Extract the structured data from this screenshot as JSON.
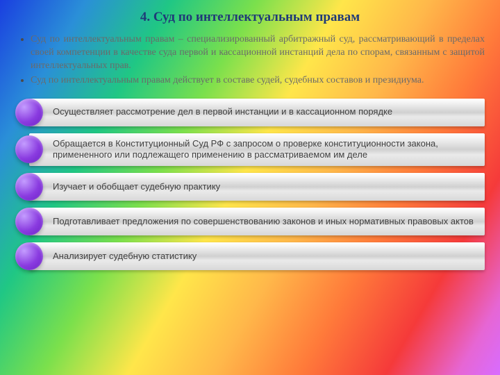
{
  "title": "4. Суд по интеллектуальным правам",
  "colors": {
    "title": "#1f3a78",
    "body_text": "#6a6a6a",
    "bar_text": "#404040",
    "dot_gradient": [
      "#c49dff",
      "#8a3be0",
      "#6a1fc4"
    ],
    "bar_gradient": [
      "#ffffff",
      "#f0f0f0",
      "#d0d0d0",
      "#eaeaea",
      "#d8d8d8"
    ],
    "background_gradient": [
      "#1a3fe0",
      "#2a8fd8",
      "#20c784",
      "#7be04c",
      "#ffe64a",
      "#ffb84a",
      "#ff7a3a",
      "#f53a3a",
      "#e666d4",
      "#d86cff"
    ]
  },
  "typography": {
    "title_fontsize": 19,
    "body_fontsize": 14,
    "bar_fontsize": 13,
    "title_font": "Times New Roman",
    "bar_font": "Arial"
  },
  "bullets": [
    "Суд по интеллектуальным правам – специализированный арбитражный суд, рассматривающий в пределах своей компетенции в качестве суда первой и кассационной инстанций дела по спорам, связанным с защитой интеллектуальных прав.",
    "Суд по интеллектуальным правам действует в составе судей, судебных составов и президиума."
  ],
  "items": [
    "Осуществляет рассмотрение дел в первой инстанции и в кассационном порядке",
    "Обращается в Конституционный Суд РФ с запросом о проверке конституционности закона, примененного или подлежащего применению в рассматриваемом им деле",
    "Изучает и обобщает судебную практику",
    "Подготавливает предложения по совершенствованию законов и иных нормативных правовых актов",
    "Анализирует судебную статистику"
  ]
}
